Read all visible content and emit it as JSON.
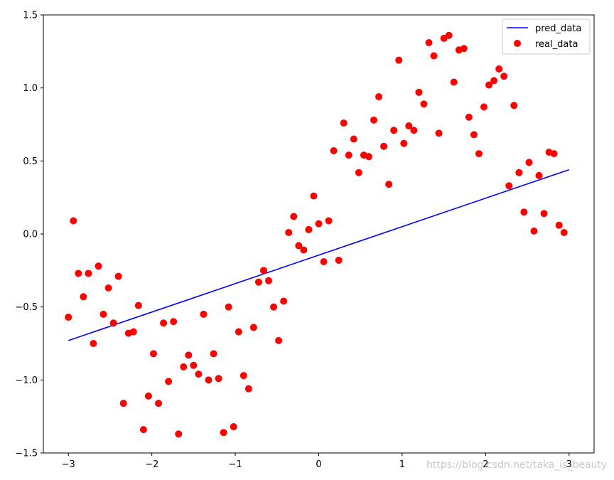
{
  "chart_data": {
    "type": "line+scatter",
    "xlim": [
      -3.3,
      3.3
    ],
    "ylim": [
      -1.5,
      1.5
    ],
    "x_ticks": [
      -3,
      -2,
      -1,
      0,
      1,
      2,
      3
    ],
    "x_tick_labels": [
      "−3",
      "−2",
      "−1",
      "0",
      "1",
      "2",
      "3"
    ],
    "y_ticks": [
      -1.5,
      -1.0,
      -0.5,
      0.0,
      0.5,
      1.0,
      1.5
    ],
    "y_tick_labels": [
      "−1.5",
      "−1.0",
      "−0.5",
      "0.0",
      "0.5",
      "1.0",
      "1.5"
    ],
    "grid": false,
    "legend_position": "top-right",
    "series": [
      {
        "name": "pred_data",
        "kind": "line",
        "color": "#0000ff",
        "x": [
          -3.0,
          3.0
        ],
        "y": [
          -0.73,
          0.44
        ]
      },
      {
        "name": "real_data",
        "kind": "scatter",
        "color": "#ff0000",
        "points": [
          [
            -3.0,
            -0.57
          ],
          [
            -2.94,
            0.09
          ],
          [
            -2.88,
            -0.27
          ],
          [
            -2.82,
            -0.43
          ],
          [
            -2.76,
            -0.27
          ],
          [
            -2.7,
            -0.75
          ],
          [
            -2.64,
            -0.22
          ],
          [
            -2.58,
            -0.55
          ],
          [
            -2.52,
            -0.37
          ],
          [
            -2.46,
            -0.61
          ],
          [
            -2.4,
            -0.29
          ],
          [
            -2.34,
            -1.16
          ],
          [
            -2.28,
            -0.68
          ],
          [
            -2.22,
            -0.67
          ],
          [
            -2.16,
            -0.49
          ],
          [
            -2.1,
            -1.34
          ],
          [
            -2.04,
            -1.11
          ],
          [
            -1.98,
            -0.82
          ],
          [
            -1.92,
            -1.16
          ],
          [
            -1.86,
            -0.61
          ],
          [
            -1.8,
            -1.01
          ],
          [
            -1.74,
            -0.6
          ],
          [
            -1.68,
            -1.37
          ],
          [
            -1.62,
            -0.91
          ],
          [
            -1.56,
            -0.83
          ],
          [
            -1.5,
            -0.9
          ],
          [
            -1.44,
            -0.96
          ],
          [
            -1.38,
            -0.55
          ],
          [
            -1.32,
            -1.0
          ],
          [
            -1.26,
            -0.82
          ],
          [
            -1.2,
            -0.99
          ],
          [
            -1.14,
            -1.36
          ],
          [
            -1.08,
            -0.5
          ],
          [
            -1.02,
            -1.32
          ],
          [
            -0.96,
            -0.67
          ],
          [
            -0.9,
            -0.97
          ],
          [
            -0.84,
            -1.06
          ],
          [
            -0.78,
            -0.64
          ],
          [
            -0.72,
            -0.33
          ],
          [
            -0.66,
            -0.25
          ],
          [
            -0.6,
            -0.32
          ],
          [
            -0.54,
            -0.5
          ],
          [
            -0.48,
            -0.73
          ],
          [
            -0.42,
            -0.46
          ],
          [
            -0.36,
            0.01
          ],
          [
            -0.3,
            0.12
          ],
          [
            -0.24,
            -0.08
          ],
          [
            -0.18,
            -0.11
          ],
          [
            -0.12,
            0.03
          ],
          [
            -0.06,
            0.26
          ],
          [
            0.0,
            0.07
          ],
          [
            0.06,
            -0.19
          ],
          [
            0.12,
            0.09
          ],
          [
            0.18,
            0.57
          ],
          [
            0.24,
            -0.18
          ],
          [
            0.3,
            0.76
          ],
          [
            0.36,
            0.54
          ],
          [
            0.42,
            0.65
          ],
          [
            0.48,
            0.42
          ],
          [
            0.54,
            0.54
          ],
          [
            0.6,
            0.53
          ],
          [
            0.66,
            0.78
          ],
          [
            0.72,
            0.94
          ],
          [
            0.78,
            0.6
          ],
          [
            0.84,
            0.34
          ],
          [
            0.9,
            0.71
          ],
          [
            0.96,
            1.19
          ],
          [
            1.02,
            0.62
          ],
          [
            1.08,
            0.74
          ],
          [
            1.14,
            0.71
          ],
          [
            1.2,
            0.97
          ],
          [
            1.26,
            0.89
          ],
          [
            1.32,
            1.31
          ],
          [
            1.38,
            1.22
          ],
          [
            1.44,
            0.69
          ],
          [
            1.5,
            1.34
          ],
          [
            1.56,
            1.36
          ],
          [
            1.62,
            1.04
          ],
          [
            1.68,
            1.26
          ],
          [
            1.74,
            1.27
          ],
          [
            1.8,
            0.8
          ],
          [
            1.86,
            0.68
          ],
          [
            1.92,
            0.55
          ],
          [
            1.98,
            0.87
          ],
          [
            2.04,
            1.02
          ],
          [
            2.1,
            1.05
          ],
          [
            2.16,
            1.13
          ],
          [
            2.22,
            1.08
          ],
          [
            2.28,
            0.33
          ],
          [
            2.34,
            0.88
          ],
          [
            2.4,
            0.42
          ],
          [
            2.46,
            0.15
          ],
          [
            2.52,
            0.49
          ],
          [
            2.58,
            0.02
          ],
          [
            2.64,
            0.4
          ],
          [
            2.7,
            0.14
          ],
          [
            2.76,
            0.56
          ],
          [
            2.82,
            0.55
          ],
          [
            2.88,
            0.06
          ],
          [
            2.94,
            0.01
          ]
        ]
      }
    ]
  },
  "watermark": "https://blog.csdn.net/taka_is_beauty"
}
